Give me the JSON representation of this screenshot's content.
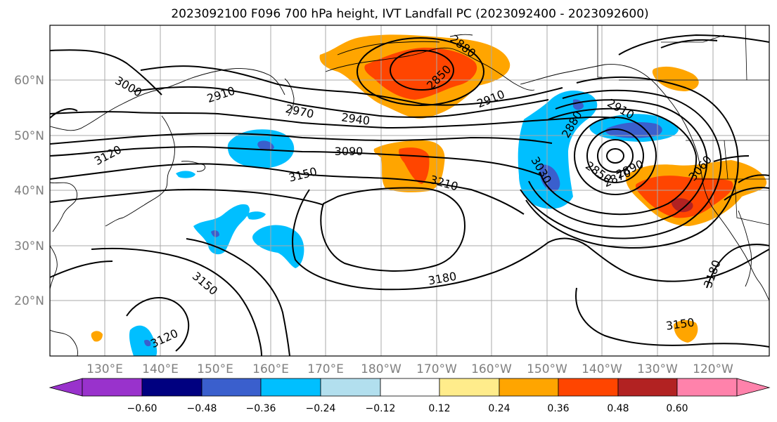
{
  "title": "2023092100 F096 700 hPa height, IVT Landfall PC (2023092400 - 2023092600)",
  "longitude_labels": [
    "130°E",
    "140°E",
    "150°E",
    "160°E",
    "170°E",
    "180°W",
    "170°W",
    "160°W",
    "150°W",
    "140°W",
    "130°W",
    "120°W"
  ],
  "latitude_labels": [
    "20°N",
    "30°N",
    "40°N",
    "50°N",
    "60°N"
  ],
  "colorbar": {
    "tick_labels": [
      "−0.60",
      "−0.48",
      "−0.36",
      "−0.24",
      "−0.12",
      "0.12",
      "0.24",
      "0.36",
      "0.48",
      "0.60"
    ],
    "colors": [
      "#9932cc",
      "#000080",
      "#3a5fcd",
      "#00bfff",
      "#b2dfee",
      "#ffffff",
      "#ffec8b",
      "#ffa500",
      "#ff4500",
      "#b22222",
      "#ff82ab"
    ]
  },
  "contour_labels": [
    "3000",
    "2910",
    "2970",
    "2940",
    "3120",
    "3090",
    "3150",
    "3210",
    "2880",
    "2850",
    "2910",
    "2880",
    "3030",
    "2910",
    "2850",
    "2870",
    "2890",
    "3060",
    "3150",
    "3180",
    "3120",
    "3180",
    "3150"
  ],
  "contour_label_color": "#000000",
  "height_contour_color": "#000000",
  "grid_color": "#a9a9a9"
}
